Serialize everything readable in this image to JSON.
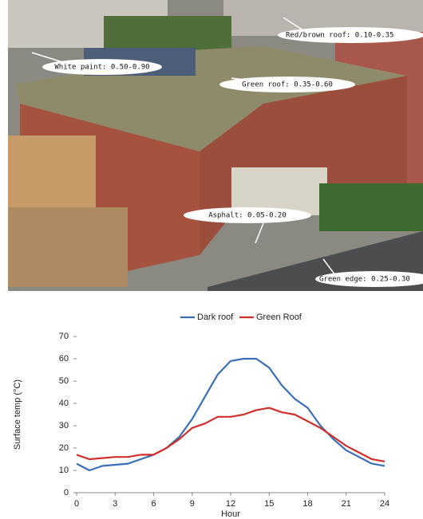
{
  "photo": {
    "labels": [
      "Red/brown roof: 0.10-0.35",
      "White paint: 0.50-0.90",
      "Green roof: 0.35-0.60",
      "Asphalt: 0.05-0.20",
      "Green edge: 0.25-0.30"
    ]
  },
  "chart_data": {
    "type": "line",
    "x_label": "Hour",
    "y_label": "Surface temp (°C)",
    "x": [
      0,
      1,
      2,
      3,
      4,
      5,
      6,
      7,
      8,
      9,
      10,
      11,
      12,
      13,
      14,
      15,
      16,
      17,
      18,
      19,
      20,
      21,
      22,
      23,
      24
    ],
    "series": [
      {
        "name": "Dark roof",
        "color": "#3a6fb5",
        "values": [
          13,
          10,
          12,
          12.5,
          13,
          15,
          17,
          20,
          25,
          33,
          43,
          53,
          59,
          60,
          60,
          56,
          48,
          42,
          38,
          30,
          24,
          19,
          16,
          13,
          12
        ]
      },
      {
        "name": "Green Roof",
        "color": "#d0302c",
        "values": [
          17,
          15,
          15.5,
          16,
          16,
          17,
          17,
          20,
          24,
          29,
          31,
          34,
          34,
          35,
          37,
          38,
          36,
          35,
          32,
          29,
          25,
          21,
          18,
          15,
          14
        ]
      }
    ],
    "xlim": [
      0,
      24
    ],
    "xticks": [
      0,
      3,
      6,
      9,
      12,
      15,
      18,
      21,
      24
    ],
    "ylim": [
      0,
      70
    ],
    "yticks": [
      0,
      10,
      20,
      30,
      40,
      50,
      60,
      70
    ],
    "legend": "top"
  }
}
